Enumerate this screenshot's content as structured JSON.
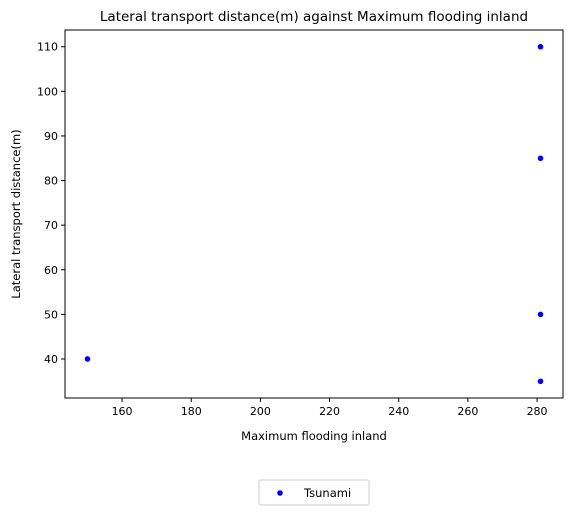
{
  "chart_data": {
    "type": "scatter",
    "title": "Lateral transport distance(m) against Maximum flooding inland",
    "xlabel": "Maximum flooding inland",
    "ylabel": "Lateral transport distance(m)",
    "xlim": [
      143.5,
      287.5
    ],
    "ylim": [
      31.25,
      113.75
    ],
    "xticks": [
      160,
      180,
      200,
      220,
      240,
      260,
      280
    ],
    "yticks": [
      40,
      50,
      60,
      70,
      80,
      90,
      100,
      110
    ],
    "grid": false,
    "legend_position": "bottom-center",
    "series": [
      {
        "name": "Tsunami",
        "color": "#0000ff",
        "marker": "circle",
        "points": [
          {
            "x": 150,
            "y": 40
          },
          {
            "x": 281,
            "y": 110
          },
          {
            "x": 281,
            "y": 85
          },
          {
            "x": 281,
            "y": 50
          },
          {
            "x": 281,
            "y": 35
          }
        ]
      }
    ]
  }
}
